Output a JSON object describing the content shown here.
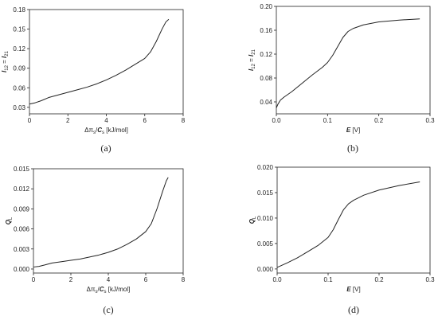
{
  "chart_data": [
    {
      "type": "line",
      "panel_label": "(a)",
      "xlabel_parts": [
        {
          "t": "Δπ",
          "i": false
        },
        {
          "t": "s",
          "sub": true
        },
        {
          "t": "/",
          "i": false
        },
        {
          "t": "C",
          "i": true,
          "b": true
        },
        {
          "t": "s",
          "sub": true
        },
        {
          "t": " [kJ/mol]",
          "i": false
        }
      ],
      "ylabel_parts": [
        {
          "t": "I",
          "i": true,
          "b": true
        },
        {
          "t": "12",
          "sub": true
        },
        {
          "t": " = ",
          "i": false
        },
        {
          "t": "I",
          "i": true,
          "b": true
        },
        {
          "t": "21",
          "sub": true
        }
      ],
      "xlim": [
        0,
        8
      ],
      "ylim": [
        0.02,
        0.18
      ],
      "xticks": [
        0,
        2,
        4,
        6,
        8
      ],
      "xtick_labels": [
        "0",
        "2",
        "4",
        "6",
        "8"
      ],
      "yticks": [
        0.03,
        0.06,
        0.09,
        0.12,
        0.15,
        0.18
      ],
      "ytick_labels": [
        "0.03",
        "0.06",
        "0.09",
        "0.12",
        "0.15",
        "0.18"
      ],
      "series": [
        {
          "x": [
            0,
            0.3,
            0.6,
            1.0,
            1.5,
            2.0,
            2.5,
            3.0,
            3.5,
            4.0,
            4.5,
            5.0,
            5.5,
            6.0,
            6.3,
            6.6,
            6.9,
            7.1,
            7.25
          ],
          "y": [
            0.035,
            0.037,
            0.04,
            0.045,
            0.049,
            0.053,
            0.057,
            0.061,
            0.066,
            0.072,
            0.079,
            0.087,
            0.096,
            0.105,
            0.115,
            0.131,
            0.15,
            0.161,
            0.165
          ]
        }
      ]
    },
    {
      "type": "line",
      "panel_label": "(b)",
      "xlabel_parts": [
        {
          "t": "E",
          "i": true,
          "b": true
        },
        {
          "t": " [V]",
          "i": false
        }
      ],
      "ylabel_parts": [
        {
          "t": "I",
          "i": true,
          "b": true
        },
        {
          "t": "12",
          "sub": true
        },
        {
          "t": " = ",
          "i": false
        },
        {
          "t": "I",
          "i": true,
          "b": true
        },
        {
          "t": "21",
          "sub": true
        }
      ],
      "xlim": [
        0,
        0.3
      ],
      "ylim": [
        0.02,
        0.2
      ],
      "xticks": [
        0,
        0.1,
        0.2,
        0.3
      ],
      "xtick_labels": [
        "0.0",
        "0.1",
        "0.2",
        "0.3"
      ],
      "yticks": [
        0.04,
        0.08,
        0.12,
        0.16,
        0.2
      ],
      "ytick_labels": [
        "0.04",
        "0.08",
        "0.12",
        "0.16",
        "0.20"
      ],
      "series": [
        {
          "x": [
            0,
            0.003,
            0.008,
            0.015,
            0.03,
            0.05,
            0.07,
            0.09,
            0.1,
            0.11,
            0.12,
            0.13,
            0.14,
            0.15,
            0.17,
            0.2,
            0.24,
            0.28
          ],
          "y": [
            0.03,
            0.036,
            0.043,
            0.048,
            0.057,
            0.071,
            0.085,
            0.098,
            0.106,
            0.118,
            0.133,
            0.148,
            0.158,
            0.163,
            0.169,
            0.174,
            0.177,
            0.179
          ]
        }
      ]
    },
    {
      "type": "line",
      "panel_label": "(c)",
      "xlabel_parts": [
        {
          "t": "Δπ",
          "i": false
        },
        {
          "t": "s",
          "sub": true
        },
        {
          "t": "/",
          "i": false
        },
        {
          "t": "C",
          "i": true,
          "b": true
        },
        {
          "t": "s",
          "sub": true
        },
        {
          "t": " [kJ/mol]",
          "i": false
        }
      ],
      "ylabel_parts": [
        {
          "t": "Q",
          "i": true,
          "b": true
        },
        {
          "t": "L",
          "sub": true
        }
      ],
      "xlim": [
        0,
        8
      ],
      "ylim": [
        -0.0006,
        0.015
      ],
      "xticks": [
        0,
        2,
        4,
        6,
        8
      ],
      "xtick_labels": [
        "0",
        "2",
        "4",
        "6",
        "8"
      ],
      "yticks": [
        0,
        0.003,
        0.006,
        0.009,
        0.012,
        0.015
      ],
      "ytick_labels": [
        "0.000",
        "0.003",
        "0.006",
        "0.009",
        "0.012",
        "0.015"
      ],
      "series": [
        {
          "x": [
            0,
            0.3,
            0.6,
            1.0,
            1.5,
            2.0,
            2.5,
            3.0,
            3.5,
            4.0,
            4.5,
            5.0,
            5.5,
            6.0,
            6.3,
            6.6,
            6.9,
            7.1,
            7.2
          ],
          "y": [
            0.0003,
            0.0004,
            0.0006,
            0.0009,
            0.0011,
            0.0013,
            0.0015,
            0.0018,
            0.0021,
            0.0025,
            0.003,
            0.0037,
            0.0045,
            0.0056,
            0.0068,
            0.009,
            0.0116,
            0.0132,
            0.0137
          ]
        }
      ]
    },
    {
      "type": "line",
      "panel_label": "(d)",
      "xlabel_parts": [
        {
          "t": "E",
          "i": true,
          "b": true
        },
        {
          "t": " [V]",
          "i": false
        }
      ],
      "ylabel_parts": [
        {
          "t": "Q",
          "i": true,
          "b": true
        },
        {
          "t": "L",
          "sub": true
        }
      ],
      "xlim": [
        0,
        0.3
      ],
      "ylim": [
        -0.0008,
        0.02
      ],
      "xticks": [
        0,
        0.1,
        0.2,
        0.3
      ],
      "xtick_labels": [
        "0.0",
        "0.1",
        "0.2",
        "0.3"
      ],
      "yticks": [
        0,
        0.005,
        0.01,
        0.015,
        0.02
      ],
      "ytick_labels": [
        "0.000",
        "0.005",
        "0.010",
        "0.015",
        "0.020"
      ],
      "series": [
        {
          "x": [
            0,
            0.02,
            0.04,
            0.06,
            0.08,
            0.1,
            0.11,
            0.12,
            0.13,
            0.14,
            0.15,
            0.17,
            0.2,
            0.24,
            0.28
          ],
          "y": [
            0.0003,
            0.0012,
            0.0022,
            0.0034,
            0.0046,
            0.0062,
            0.0077,
            0.0097,
            0.0116,
            0.0128,
            0.0135,
            0.0145,
            0.0155,
            0.0164,
            0.0171
          ]
        }
      ]
    }
  ]
}
